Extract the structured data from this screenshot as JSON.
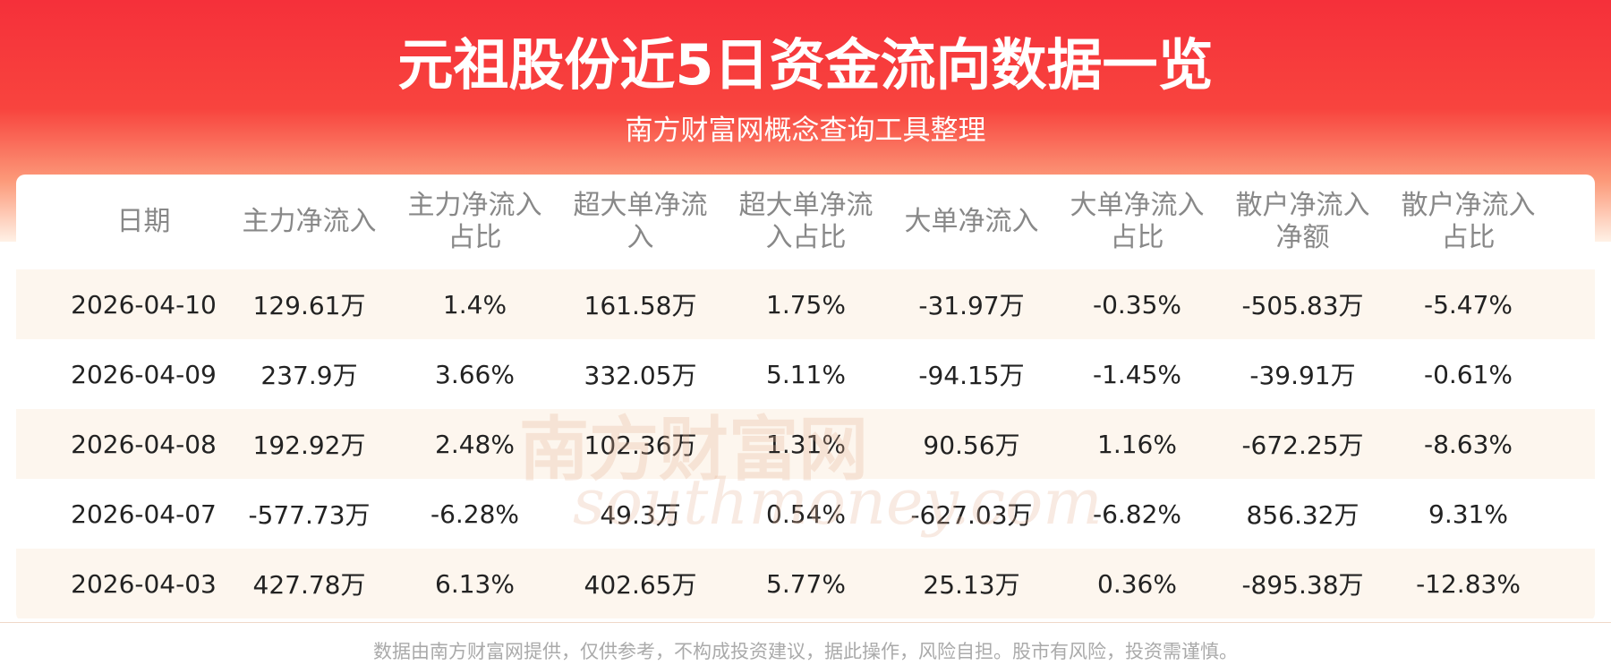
{
  "header": {
    "title": "元祖股份近5日资金流向数据一览",
    "subtitle": "南方财富网概念查询工具整理"
  },
  "table": {
    "columns": [
      "日期",
      "主力净流入",
      "主力净流入占比",
      "超大单净流入",
      "超大单净流入占比",
      "大单净流入",
      "大单净流入占比",
      "散户净流入净额",
      "散户净流入占比"
    ],
    "rows": [
      [
        "2026-04-10",
        "129.61万",
        "1.4%",
        "161.58万",
        "1.75%",
        "-31.97万",
        "-0.35%",
        "-505.83万",
        "-5.47%"
      ],
      [
        "2026-04-09",
        "237.9万",
        "3.66%",
        "332.05万",
        "5.11%",
        "-94.15万",
        "-1.45%",
        "-39.91万",
        "-0.61%"
      ],
      [
        "2026-04-08",
        "192.92万",
        "2.48%",
        "102.36万",
        "1.31%",
        "90.56万",
        "1.16%",
        "-672.25万",
        "-8.63%"
      ],
      [
        "2026-04-07",
        "-577.73万",
        "-6.28%",
        "49.3万",
        "0.54%",
        "-627.03万",
        "-6.82%",
        "856.32万",
        "9.31%"
      ],
      [
        "2026-04-03",
        "427.78万",
        "6.13%",
        "402.65万",
        "5.77%",
        "25.13万",
        "0.36%",
        "-895.38万",
        "-12.83%"
      ]
    ]
  },
  "watermark": {
    "name": "南方财富网",
    "url": "southmoney.com"
  },
  "footer": "数据由南方财富网提供，仅供参考，不构成投资建议，据此操作，风险自担。股市有风险，投资需谨慎。"
}
